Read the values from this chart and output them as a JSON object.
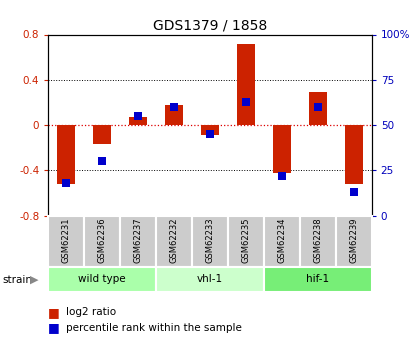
{
  "title": "GDS1379 / 1858",
  "samples": [
    "GSM62231",
    "GSM62236",
    "GSM62237",
    "GSM62232",
    "GSM62233",
    "GSM62235",
    "GSM62234",
    "GSM62238",
    "GSM62239"
  ],
  "log2_ratio": [
    -0.52,
    -0.17,
    0.07,
    0.18,
    -0.09,
    0.72,
    -0.42,
    0.29,
    -0.52
  ],
  "percentile": [
    18,
    30,
    55,
    60,
    45,
    63,
    22,
    60,
    13
  ],
  "groups": [
    {
      "label": "wild type",
      "start": 0,
      "end": 3,
      "color": "#aaffaa"
    },
    {
      "label": "vhl-1",
      "start": 3,
      "end": 6,
      "color": "#ccffcc"
    },
    {
      "label": "hif-1",
      "start": 6,
      "end": 9,
      "color": "#77ee77"
    }
  ],
  "ylim_left": [
    -0.8,
    0.8
  ],
  "ylim_right": [
    0,
    100
  ],
  "bar_color": "#cc2200",
  "dot_color": "#0000cc",
  "plot_bg": "#ffffff",
  "zero_line_color": "#dd0000",
  "tick_color_left": "#cc2200",
  "tick_color_right": "#0000bb",
  "left_ticks": [
    -0.8,
    -0.4,
    0.0,
    0.4,
    0.8
  ],
  "right_ticks": [
    0,
    25,
    50,
    75,
    100
  ],
  "bar_width": 0.5,
  "dot_size": 35,
  "label_bg": "#cccccc"
}
